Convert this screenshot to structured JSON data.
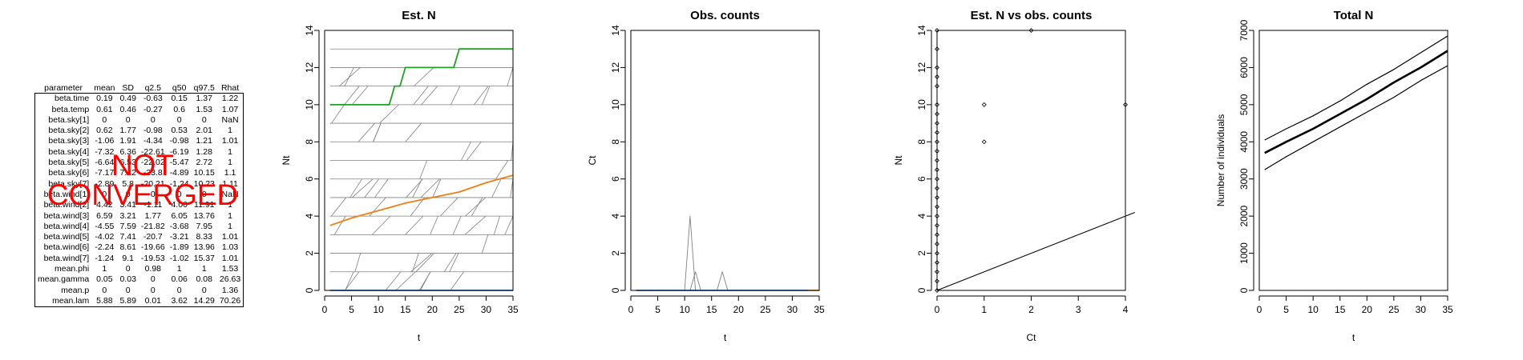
{
  "stats_table": {
    "columns": [
      "parameter",
      "mean",
      "SD",
      "q2.5",
      "q50",
      "q97.5",
      "Rhat"
    ],
    "rows": [
      [
        "beta.time",
        "0.19",
        "0.49",
        "-0.63",
        "0.15",
        "1.37",
        "1.22"
      ],
      [
        "beta.temp",
        "0.61",
        "0.46",
        "-0.27",
        "0.6",
        "1.53",
        "1.07"
      ],
      [
        "beta.sky[1]",
        "0",
        "0",
        "0",
        "0",
        "0",
        "NaN"
      ],
      [
        "beta.sky[2]",
        "0.62",
        "1.77",
        "-0.98",
        "0.53",
        "2.01",
        "1"
      ],
      [
        "beta.sky[3]",
        "-1.06",
        "1.91",
        "-4.34",
        "-0.98",
        "1.21",
        "1.01"
      ],
      [
        "beta.sky[4]",
        "-7.32",
        "6.36",
        "-22.61",
        "-6.19",
        "1.28",
        "1"
      ],
      [
        "beta.sky[5]",
        "-6.64",
        "6.53",
        "-22.02",
        "-5.47",
        "2.72",
        "1"
      ],
      [
        "beta.sky[6]",
        "-7.17",
        "7.42",
        "-23.8",
        "-4.89",
        "10.15",
        "1.1"
      ],
      [
        "beta.sky[7]",
        "-2.89",
        "5.8",
        "-20.21",
        "-1.24",
        "10.23",
        "1.11"
      ],
      [
        "beta.wind[1]",
        "0",
        "0",
        "0",
        "0",
        "0",
        "NaN"
      ],
      [
        "beta.wind[2]",
        "4.42",
        "3.41",
        "-1.11",
        "4.06",
        "11.91",
        "1"
      ],
      [
        "beta.wind[3]",
        "6.59",
        "3.21",
        "1.77",
        "6.05",
        "13.76",
        "1"
      ],
      [
        "beta.wind[4]",
        "-4.55",
        "7.59",
        "-21.82",
        "-3.68",
        "7.95",
        "1"
      ],
      [
        "beta.wind[5]",
        "-4.02",
        "7.41",
        "-20.7",
        "-3.21",
        "8.33",
        "1.01"
      ],
      [
        "beta.wind[6]",
        "-2.24",
        "8.61",
        "-19.66",
        "-1.89",
        "13.96",
        "1.03"
      ],
      [
        "beta.wind[7]",
        "-1.24",
        "9.1",
        "-19.53",
        "-1.02",
        "15.37",
        "1.01"
      ],
      [
        "mean.phi",
        "1",
        "0",
        "0.98",
        "1",
        "1",
        "1.53"
      ],
      [
        "mean.gamma",
        "0.05",
        "0.03",
        "0",
        "0.06",
        "0.08",
        "26.63"
      ],
      [
        "mean.p",
        "0",
        "0",
        "0",
        "0",
        "0",
        "1.36"
      ],
      [
        "mean.lam",
        "5.88",
        "5.89",
        "0.01",
        "3.62",
        "14.29",
        "70.26"
      ]
    ],
    "overlay_line1": "NOT",
    "overlay_line2": "CONVERGED",
    "overlay_color": "#ff0000"
  },
  "chart_data": [
    {
      "type": "line",
      "title": "Est. N",
      "xlabel": "t",
      "ylabel": "Nt",
      "xlim": [
        0,
        35
      ],
      "ylim": [
        0,
        14
      ],
      "xticks": [
        0,
        5,
        10,
        15,
        20,
        25,
        30,
        35
      ],
      "yticks": [
        0,
        2,
        4,
        6,
        8,
        10,
        12,
        14
      ],
      "background_lines": {
        "color": "#808080",
        "description_count": 60,
        "levels": [
          1,
          2,
          3,
          4,
          5,
          6,
          7,
          8,
          9,
          10,
          11,
          12,
          13,
          14
        ]
      },
      "series": [
        {
          "color": "#22a022",
          "x": [
            1,
            12,
            13,
            14,
            15,
            24,
            25,
            35
          ],
          "y": [
            10,
            10,
            11,
            11,
            12,
            12,
            13,
            13
          ]
        },
        {
          "color": "#f07f13",
          "x": [
            1,
            5,
            10,
            15,
            20,
            25,
            30,
            35
          ],
          "y": [
            3.5,
            3.9,
            4.3,
            4.7,
            5.0,
            5.3,
            5.8,
            6.2
          ]
        },
        {
          "color": "#1f77d0",
          "x": [
            1,
            35
          ],
          "y": [
            0,
            0
          ]
        }
      ]
    },
    {
      "type": "line",
      "title": "Obs. counts",
      "xlabel": "t",
      "ylabel": "Ct",
      "xlim": [
        0,
        35
      ],
      "ylim": [
        0,
        14
      ],
      "xticks": [
        0,
        5,
        10,
        15,
        20,
        25,
        30,
        35
      ],
      "yticks": [
        0,
        2,
        4,
        6,
        8,
        10,
        12,
        14
      ],
      "series": [
        {
          "color": "#808080",
          "x": [
            10,
            11,
            12
          ],
          "y": [
            0,
            4,
            0
          ]
        },
        {
          "color": "#808080",
          "x": [
            11,
            12,
            13
          ],
          "y": [
            0,
            1,
            0
          ]
        },
        {
          "color": "#808080",
          "x": [
            16,
            17,
            18
          ],
          "y": [
            0,
            1,
            0
          ]
        },
        {
          "color": "#1f77d0",
          "x": [
            1,
            33
          ],
          "y": [
            0,
            0
          ]
        },
        {
          "color": "#f07f13",
          "x": [
            33,
            35
          ],
          "y": [
            0,
            0
          ]
        }
      ]
    },
    {
      "type": "scatter",
      "title": "Est. N vs obs. counts",
      "xlabel": "Ct",
      "ylabel": "Nt",
      "xlim": [
        0,
        4
      ],
      "ylim": [
        0,
        14
      ],
      "xticks": [
        0,
        1,
        2,
        3,
        4
      ],
      "yticks": [
        0,
        2,
        4,
        6,
        8,
        10,
        12,
        14
      ],
      "points": [
        [
          0,
          0
        ],
        [
          0,
          0.5
        ],
        [
          0,
          1
        ],
        [
          0,
          1.5
        ],
        [
          0,
          2
        ],
        [
          0,
          2.5
        ],
        [
          0,
          3
        ],
        [
          0,
          3.5
        ],
        [
          0,
          4
        ],
        [
          0,
          4.5
        ],
        [
          0,
          5
        ],
        [
          0,
          5.5
        ],
        [
          0,
          6
        ],
        [
          0,
          6.5
        ],
        [
          0,
          7
        ],
        [
          0,
          7.5
        ],
        [
          0,
          8
        ],
        [
          0,
          8.5
        ],
        [
          0,
          9
        ],
        [
          0,
          9.5
        ],
        [
          0,
          10
        ],
        [
          0,
          11
        ],
        [
          0,
          11.5
        ],
        [
          0,
          12
        ],
        [
          0,
          13
        ],
        [
          0,
          14
        ],
        [
          1,
          10
        ],
        [
          1,
          8
        ],
        [
          2,
          14
        ],
        [
          4,
          10
        ]
      ],
      "reference_line": {
        "x": [
          0,
          4.2
        ],
        "y": [
          0,
          4.2
        ]
      }
    },
    {
      "type": "line",
      "title": "Total N",
      "xlabel": "t",
      "ylabel": "Number of individuals",
      "xlim": [
        0,
        35
      ],
      "ylim": [
        0,
        7000
      ],
      "xticks": [
        0,
        5,
        10,
        15,
        20,
        25,
        30,
        35
      ],
      "yticks": [
        0,
        1000,
        2000,
        3000,
        4000,
        5000,
        6000,
        7000
      ],
      "series": [
        {
          "color": "#000000",
          "x": [
            1,
            5,
            10,
            15,
            20,
            25,
            30,
            35
          ],
          "y": [
            3700,
            4000,
            4350,
            4750,
            5150,
            5600,
            6000,
            6450
          ]
        },
        {
          "color": "#000000",
          "x": [
            1,
            5,
            10,
            15,
            20,
            25,
            30,
            35
          ],
          "y": [
            4050,
            4350,
            4700,
            5100,
            5550,
            5950,
            6400,
            6850
          ]
        },
        {
          "color": "#000000",
          "x": [
            1,
            5,
            10,
            15,
            20,
            25,
            30,
            35
          ],
          "y": [
            3250,
            3600,
            4000,
            4400,
            4800,
            5200,
            5650,
            6050
          ]
        }
      ]
    }
  ]
}
